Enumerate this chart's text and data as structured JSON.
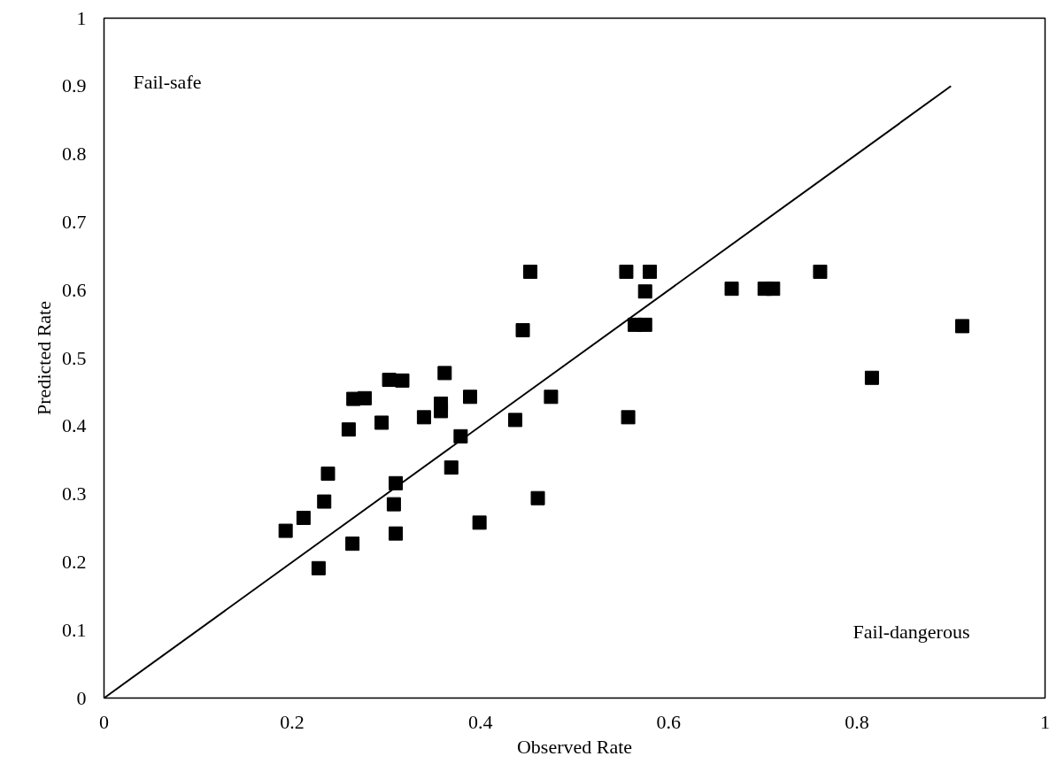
{
  "chart_data": {
    "type": "scatter",
    "xlabel": "Observed Rate",
    "ylabel": "Predicted Rate",
    "xlim": [
      0,
      1
    ],
    "ylim": [
      0,
      1
    ],
    "xticks": [
      0,
      0.2,
      0.4,
      0.6,
      0.8,
      1
    ],
    "yticks": [
      0,
      0.1,
      0.2,
      0.3,
      0.4,
      0.5,
      0.6,
      0.7,
      0.8,
      0.9,
      1
    ],
    "grid": false,
    "marker": "square",
    "series": [
      {
        "color": "#000000",
        "x": [
          0.193,
          0.212,
          0.234,
          0.238,
          0.228,
          0.26,
          0.265,
          0.277,
          0.264,
          0.295,
          0.303,
          0.317,
          0.31,
          0.308,
          0.31,
          0.34,
          0.362,
          0.358,
          0.358,
          0.369,
          0.379,
          0.389,
          0.399,
          0.437,
          0.445,
          0.453,
          0.461,
          0.475,
          0.555,
          0.58,
          0.575,
          0.564,
          0.575,
          0.557,
          0.667,
          0.702,
          0.711,
          0.761,
          0.816,
          0.912
        ],
        "values": [
          0.246,
          0.265,
          0.289,
          0.33,
          0.191,
          0.395,
          0.44,
          0.441,
          0.227,
          0.405,
          0.468,
          0.467,
          0.316,
          0.285,
          0.242,
          0.413,
          0.478,
          0.433,
          0.422,
          0.339,
          0.385,
          0.443,
          0.258,
          0.409,
          0.541,
          0.627,
          0.294,
          0.443,
          0.627,
          0.627,
          0.598,
          0.549,
          0.549,
          0.413,
          0.602,
          0.602,
          0.602,
          0.627,
          0.471,
          0.547
        ]
      },
      {
        "type": "line",
        "color": "#000000",
        "x": [
          0,
          0.9
        ],
        "values": [
          0,
          0.9
        ],
        "line_style": "solid",
        "marker": "none"
      }
    ],
    "annotations": [
      "Fail-safe",
      "Fail-dangerous"
    ]
  }
}
